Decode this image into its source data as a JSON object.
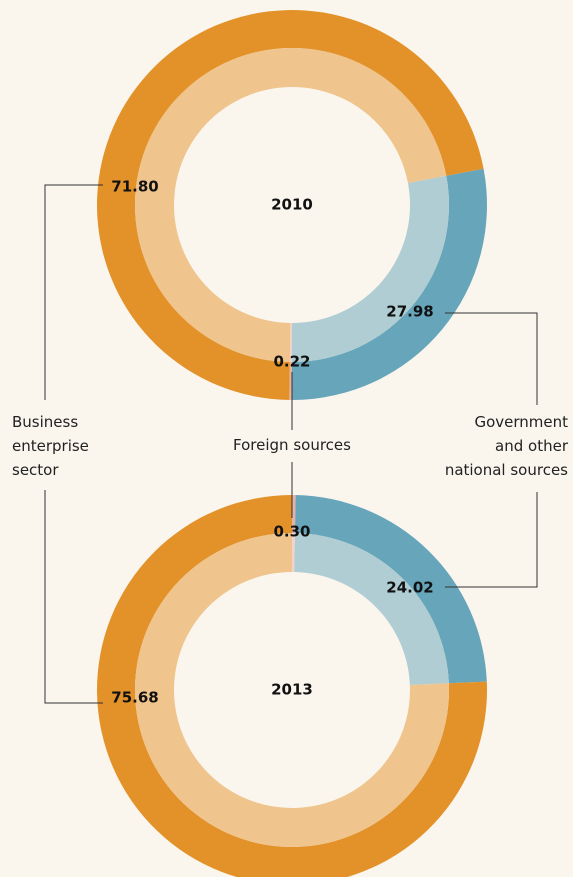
{
  "chart_data": [
    {
      "type": "donut",
      "title": "2010",
      "categories": [
        "Business enterprise sector",
        "Government and other national sources",
        "Foreign sources"
      ],
      "values": [
        71.8,
        27.98,
        0.22
      ],
      "value_labels": [
        "71.80",
        "27.98",
        "0.22"
      ],
      "colors": [
        "#e3922a",
        "#67a5ba",
        "#e6b3a6"
      ],
      "inner_colors": [
        "#efc48d",
        "#b0cdd4",
        "#f2d3cb"
      ]
    },
    {
      "type": "donut",
      "title": "2013",
      "categories": [
        "Business enterprise sector",
        "Government and other national sources",
        "Foreign sources"
      ],
      "values": [
        75.68,
        24.02,
        0.3
      ],
      "value_labels": [
        "75.68",
        "24.02",
        "0.30"
      ],
      "colors": [
        "#e3922a",
        "#67a5ba",
        "#e6b3a6"
      ],
      "inner_colors": [
        "#efc48d",
        "#b0cdd4",
        "#f2d3cb"
      ]
    }
  ]
}
